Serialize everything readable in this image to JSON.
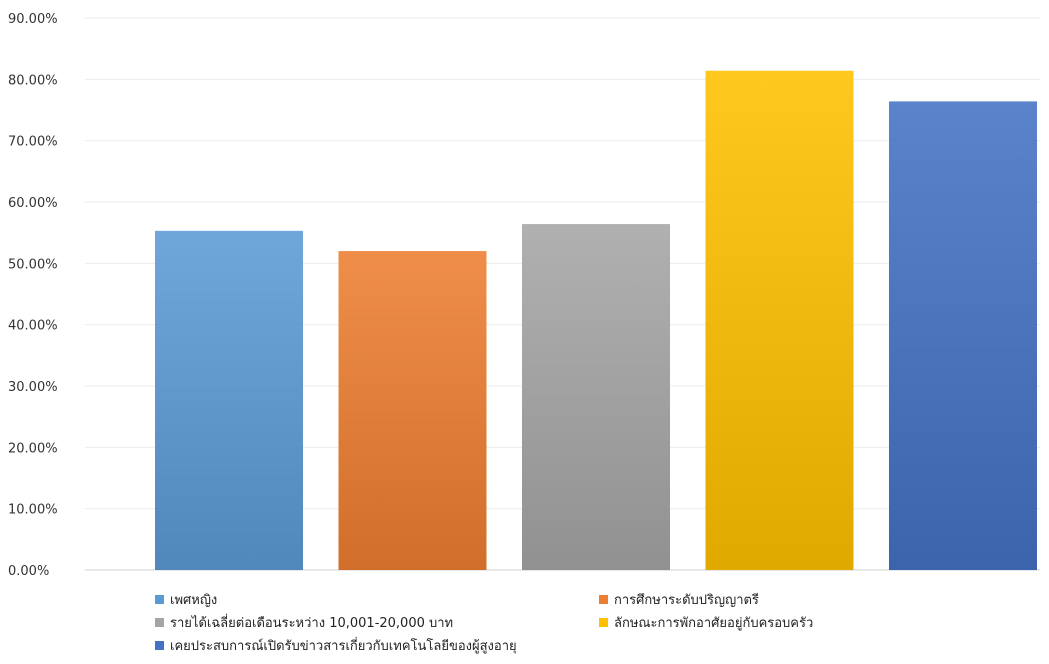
{
  "chart_data": {
    "type": "bar",
    "ylim": [
      0,
      90
    ],
    "yticks": [
      "0.00%",
      "10.00%",
      "20.00%",
      "30.00%",
      "40.00%",
      "50.00%",
      "60.00%",
      "70.00%",
      "80.00%",
      "90.00%"
    ],
    "grid": true,
    "legend_position": "bottom",
    "series": [
      {
        "name": "เพศหญิง",
        "value": 55.3,
        "color": "#5B9BD5"
      },
      {
        "name": "การศึกษาระดับปริญญาตรี",
        "value": 52.0,
        "color": "#ED7D31"
      },
      {
        "name": "รายได้เฉลี่ยต่อเดือนระหว่าง 10,001-20,000 บาท",
        "value": 56.4,
        "color": "#A5A5A5"
      },
      {
        "name": "ลักษณะการพักอาศัยอยู่กับครอบครัว",
        "value": 81.4,
        "color": "#FFC000"
      },
      {
        "name": "เคยประสบการณ์เปิดรับข่าวสารเกี่ยวกับเทคโนโลยีของผู้สูงอายุ",
        "value": 76.4,
        "color": "#4472C4"
      }
    ]
  }
}
